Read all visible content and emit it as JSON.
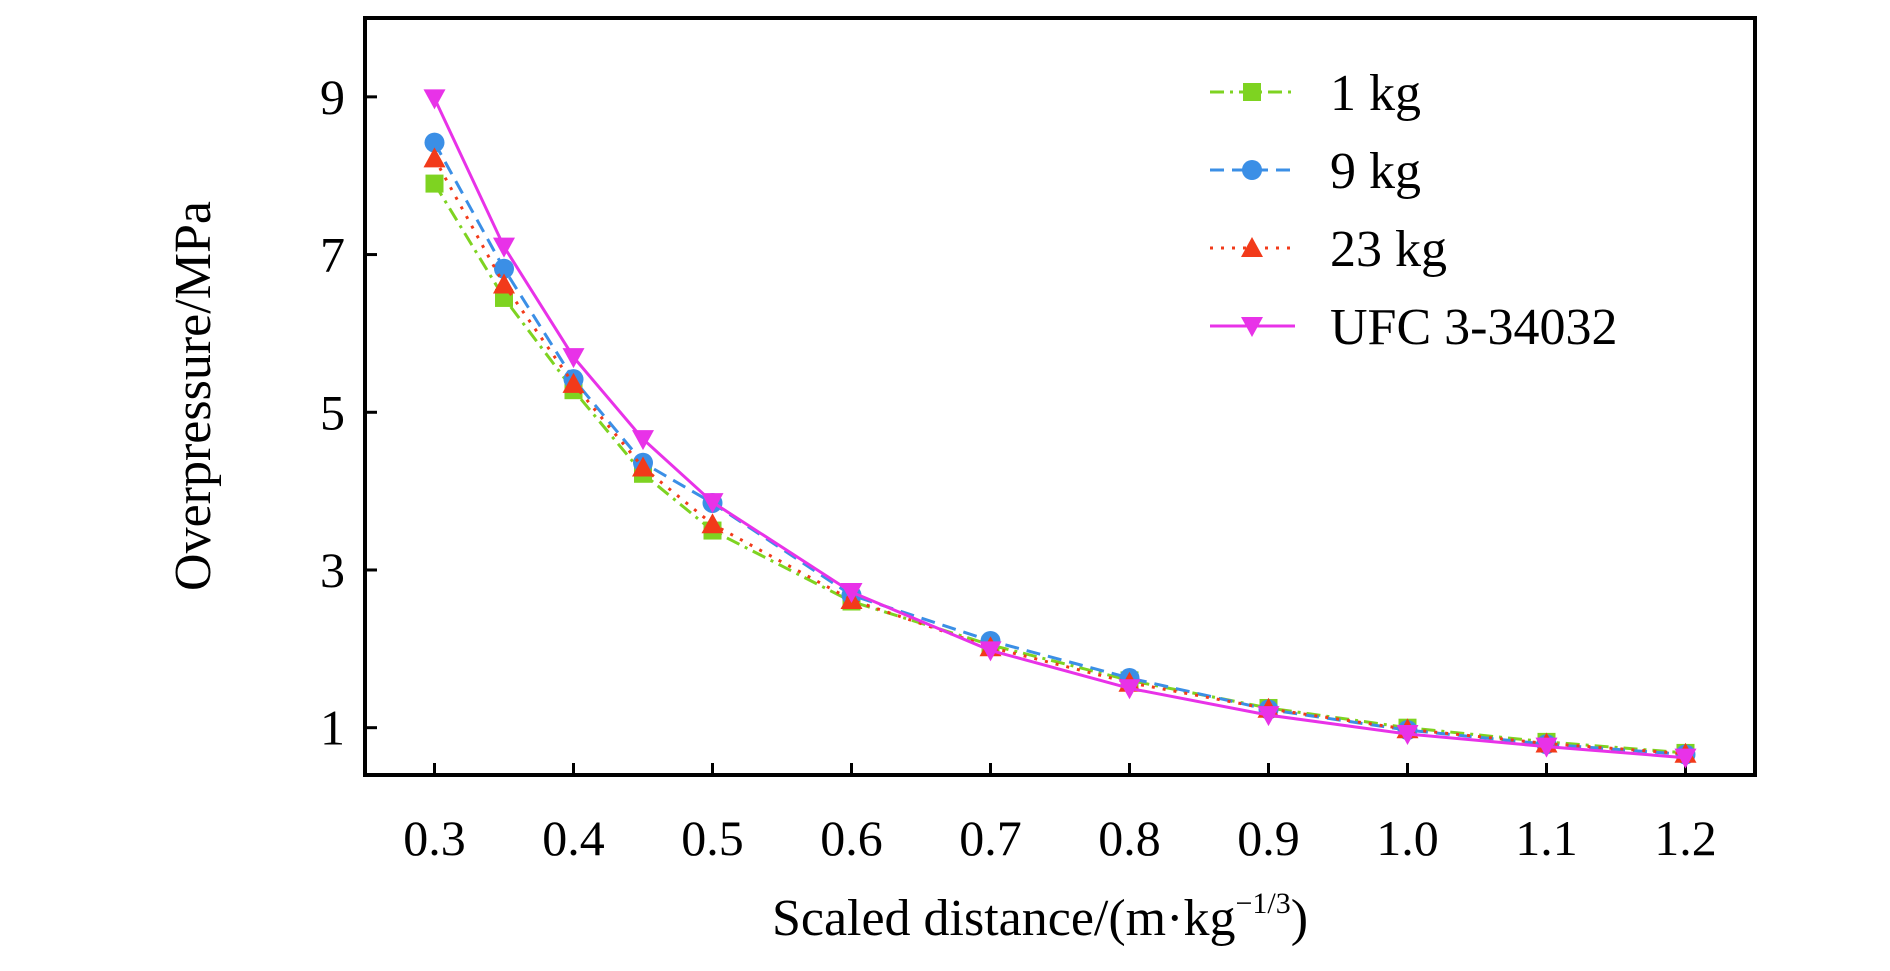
{
  "chart_data": {
    "type": "line",
    "title": "",
    "xlabel": "Scaled distance/(m·kg",
    "xlabel_sup": "−1/3",
    "xlabel_close": ")",
    "ylabel": "Overpressure/MPa",
    "x": [
      0.3,
      0.35,
      0.4,
      0.45,
      0.5,
      0.6,
      0.7,
      0.8,
      0.9,
      1.0,
      1.1,
      1.2
    ],
    "xticks": [
      0.3,
      0.4,
      0.5,
      0.6,
      0.7,
      0.8,
      0.9,
      1.0,
      1.1,
      1.2
    ],
    "xtick_labels": [
      "0.3",
      "0.4",
      "0.5",
      "0.6",
      "0.7",
      "0.8",
      "0.9",
      "1.0",
      "1.1",
      "1.2"
    ],
    "yticks": [
      1,
      3,
      5,
      7,
      9
    ],
    "ytick_labels": [
      "1",
      "3",
      "5",
      "7",
      "9"
    ],
    "xlim": [
      0.25,
      1.25
    ],
    "ylim": [
      0.4,
      10.0
    ],
    "grid": false,
    "legend_position": "top-right",
    "series": [
      {
        "name": "1 kg",
        "color": "#7ed321",
        "marker": "square",
        "dash": "dashdot",
        "values": [
          7.9,
          6.45,
          5.28,
          4.22,
          3.5,
          2.6,
          2.05,
          1.6,
          1.25,
          1.0,
          0.82,
          0.68
        ]
      },
      {
        "name": "9 kg",
        "color": "#3b8fe6",
        "marker": "circle",
        "dash": "dashed",
        "values": [
          8.42,
          6.82,
          5.42,
          4.36,
          3.85,
          2.68,
          2.1,
          1.63,
          1.23,
          0.97,
          0.79,
          0.66
        ]
      },
      {
        "name": "23 kg",
        "color": "#f23a1a",
        "marker": "triangle-up",
        "dash": "dotted",
        "values": [
          8.22,
          6.62,
          5.36,
          4.3,
          3.58,
          2.62,
          2.02,
          1.57,
          1.24,
          0.98,
          0.8,
          0.67
        ]
      },
      {
        "name": "UFC 3-34032",
        "color": "#e832e8",
        "marker": "triangle-down",
        "dash": "solid",
        "values": [
          8.98,
          7.1,
          5.7,
          4.66,
          3.86,
          2.72,
          1.98,
          1.5,
          1.16,
          0.92,
          0.76,
          0.62
        ]
      }
    ]
  }
}
